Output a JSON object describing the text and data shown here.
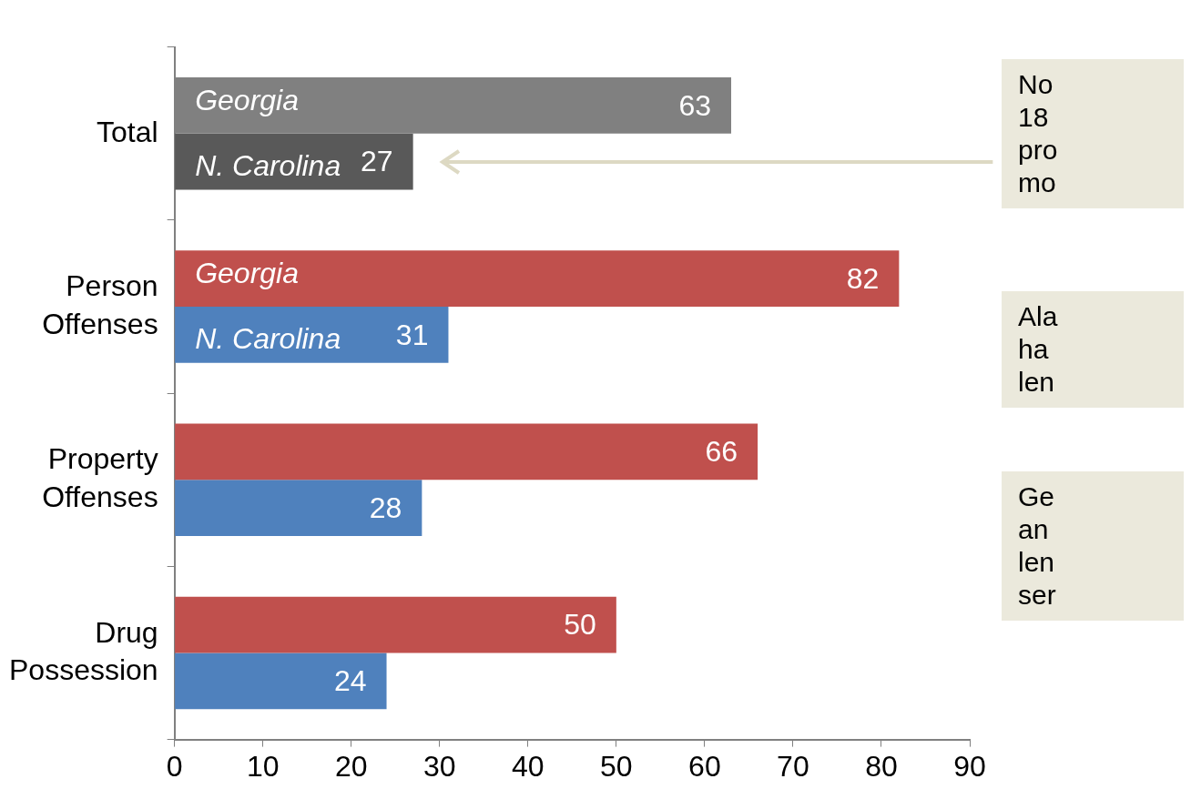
{
  "chart_data": {
    "type": "bar",
    "orientation": "horizontal",
    "categories": [
      "Total",
      "Person Offenses",
      "Property Offenses",
      "Drug Possession"
    ],
    "series": [
      {
        "name": "Georgia",
        "colors": [
          "#808080",
          "#c0504d",
          "#c0504d",
          "#c0504d"
        ],
        "values": [
          63,
          82,
          66,
          50
        ]
      },
      {
        "name": "N. Carolina",
        "colors": [
          "#595959",
          "#4f81bd",
          "#4f81bd",
          "#4f81bd"
        ],
        "values": [
          27,
          31,
          28,
          24
        ]
      }
    ],
    "xlim": [
      0,
      90
    ],
    "xticks": [
      0,
      10,
      20,
      30,
      40,
      50,
      60,
      70,
      80,
      90
    ],
    "grid": false,
    "legend": false,
    "data_labels": true,
    "annotations": [
      "No\n18\npro\nmo",
      "Ala\nha\nlen",
      "Ge\nan\nlen\nser"
    ]
  }
}
